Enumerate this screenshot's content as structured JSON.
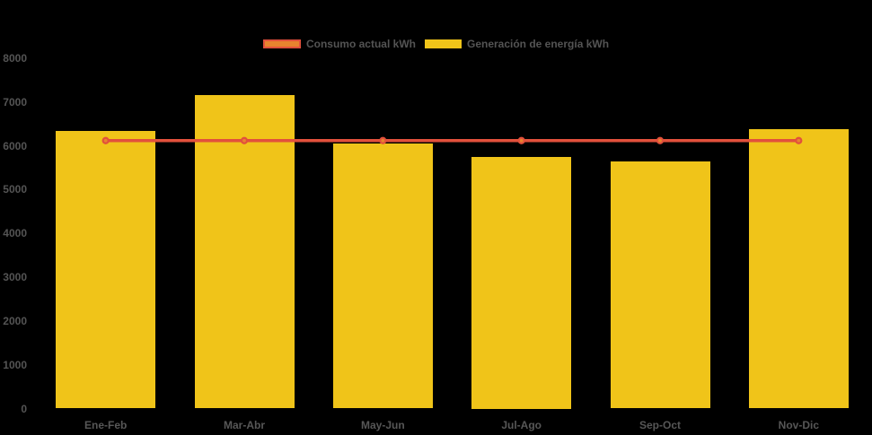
{
  "chart_data": {
    "type": "bar",
    "title": "",
    "xlabel": "",
    "ylabel": "",
    "categories": [
      "Ene-Feb",
      "Mar-Abr",
      "May-Jun",
      "Jul-Ago",
      "Sep-Oct",
      "Nov-Dic"
    ],
    "series": [
      {
        "name": "Consumo actual kWh",
        "type": "line",
        "color": "#e2503c",
        "marker_color": "#e9832e",
        "values": [
          6120,
          6120,
          6120,
          6120,
          6120,
          6120
        ]
      },
      {
        "name": "Generación de energía kWh",
        "type": "bar",
        "color": "#f0c419",
        "values": [
          6350,
          7170,
          6060,
          5750,
          5650,
          6380
        ]
      }
    ],
    "ylim": [
      0,
      8000
    ],
    "y_ticks": [
      "0",
      "1000",
      "2000",
      "3000",
      "4000",
      "5000",
      "6000",
      "7000",
      "8000"
    ],
    "grid": false,
    "axis_lines": false,
    "legend_position": "top-center",
    "background_color": "#000000",
    "axis_text_color": "#545454"
  }
}
